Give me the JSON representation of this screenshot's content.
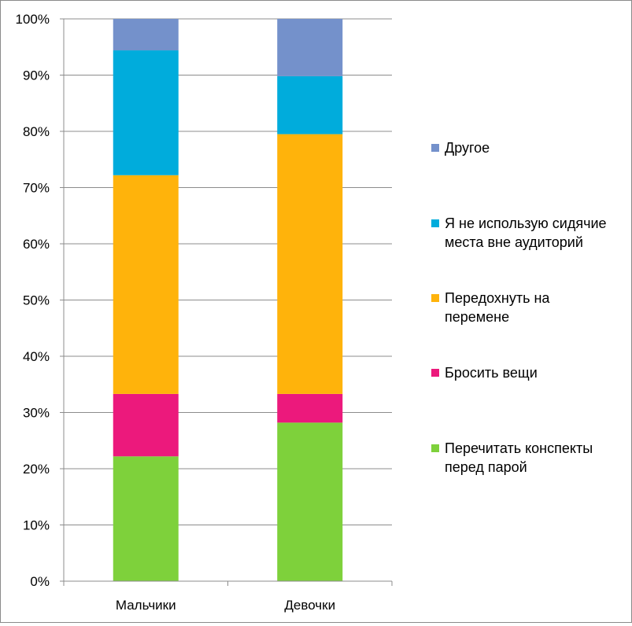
{
  "chart_data": {
    "type": "stacked-bar-100",
    "categories": [
      "Мальчики",
      "Девочки"
    ],
    "series": [
      {
        "name": "Перечитать конспекты перед парой",
        "color": "#7ED13B",
        "values": [
          22.2,
          28.2
        ]
      },
      {
        "name": "Бросить вещи",
        "color": "#EC197C",
        "values": [
          11.1,
          5.1
        ]
      },
      {
        "name": "Передохнуть на перемене",
        "color": "#FFB30B",
        "values": [
          38.9,
          46.2
        ]
      },
      {
        "name": "Я не использую сидячие места вне аудиторий",
        "color": "#00ACDC",
        "values": [
          22.2,
          10.3
        ]
      },
      {
        "name": "Другое",
        "color": "#7491CB",
        "values": [
          5.6,
          10.2
        ]
      }
    ],
    "yticks": [
      "0%",
      "10%",
      "20%",
      "30%",
      "40%",
      "50%",
      "60%",
      "70%",
      "80%",
      "90%",
      "100%"
    ],
    "ylim": [
      0,
      100
    ],
    "grid": true,
    "legend_position": "right",
    "legend": [
      {
        "lines": [
          "Другое"
        ],
        "color": "#7491CB"
      },
      {
        "lines": [
          "Я не использую сидячие",
          "места вне аудиторий"
        ],
        "color": "#00ACDC"
      },
      {
        "lines": [
          "Передохнуть на",
          "перемене"
        ],
        "color": "#FFB30B"
      },
      {
        "lines": [
          "Бросить вещи"
        ],
        "color": "#EC197C"
      },
      {
        "lines": [
          "Перечитать конспекты",
          "перед парой"
        ],
        "color": "#7ED13B"
      }
    ]
  }
}
